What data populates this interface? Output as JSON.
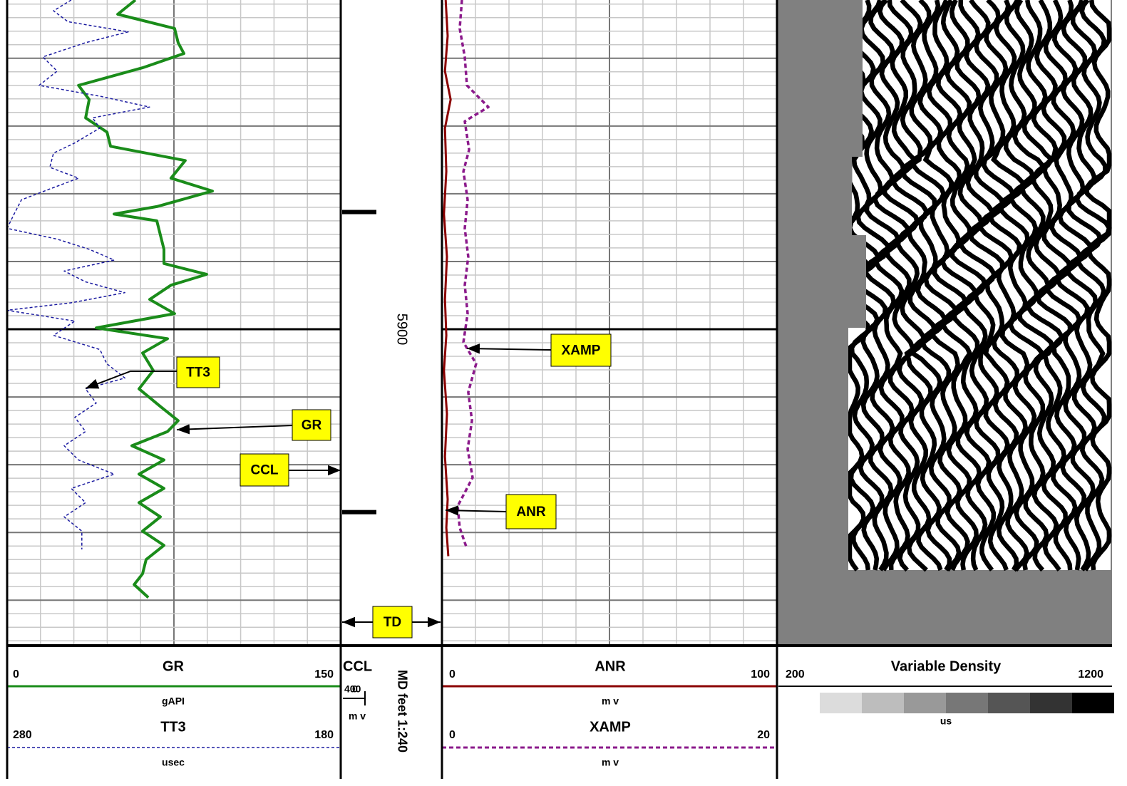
{
  "chart_data": {
    "type": "log",
    "ylim": [
      5851.4,
      5946.6
    ],
    "yticks": [
      5860,
      5870,
      5880,
      5890,
      5900,
      5910,
      5920,
      5930,
      5940
    ],
    "yminor": 2,
    "depth_label": 5900,
    "scale_label": "MD feet 1:240",
    "tracks": [
      {
        "xticks": [
          0,
          75,
          150
        ],
        "xlim": [
          0,
          150
        ],
        "xminor": 15,
        "series": [
          {
            "name": "GR",
            "unit": "gAPI",
            "xlim": [
              0,
              150
            ],
            "color": "#1a8c1a",
            "style": "solid",
            "depths": [
              5851.4,
              5853.5,
              5855.6,
              5857.7,
              5859.3,
              5861.4,
              5864.0,
              5866.1,
              5868.8,
              5870.9,
              5873.0,
              5875.1,
              5877.7,
              5879.6,
              5881.9,
              5883.0,
              5884.0,
              5886.1,
              5888.2,
              5890.3,
              5891.9,
              5893.5,
              5895.6,
              5897.7,
              5899.8,
              5901.4,
              5903.5,
              5906.1,
              5908.8,
              5911.4,
              5913.5,
              5915.1,
              5917.2,
              5919.3,
              5921.4,
              5923.5,
              5925.6,
              5927.7,
              5929.8,
              5931.9,
              5934.0,
              5936.1,
              5937.7,
              5939.6
            ],
            "values": [
              57.7,
              49.7,
              75.3,
              76.9,
              79.5,
              60.9,
              32.1,
              36.9,
              35.3,
              44.9,
              46.5,
              80.1,
              73.7,
              92.3,
              67.3,
              48.1,
              67.3,
              68.9,
              70.5,
              70.5,
              89.7,
              73.7,
              64.1,
              75.3,
              40.1,
              72.1,
              60.9,
              65.7,
              59.3,
              68.9,
              76.9,
              72.1,
              56.1,
              70.5,
              59.3,
              70.5,
              59.3,
              68.9,
              60.9,
              70.5,
              62.5,
              60.9,
              57.1,
              63.5
            ]
          },
          {
            "name": "TT3",
            "unit": "usec",
            "xlim": [
              280,
              180
            ],
            "color": "#1a1aa0",
            "style": "dashed",
            "depths": [
              5851.4,
              5853.0,
              5854.6,
              5856.1,
              5857.7,
              5859.8,
              5861.9,
              5864.0,
              5865.6,
              5867.2,
              5868.8,
              5870.3,
              5872.5,
              5874.0,
              5876.1,
              5877.7,
              5879.3,
              5880.9,
              5883.0,
              5885.1,
              5886.7,
              5888.2,
              5889.8,
              5891.4,
              5893.0,
              5894.6,
              5896.1,
              5897.2,
              5898.8,
              5900.9,
              5903.0,
              5905.1,
              5907.2,
              5908.8,
              5910.9,
              5913.0,
              5915.1,
              5917.2,
              5919.3,
              5921.4,
              5923.5,
              5925.6,
              5927.7,
              5929.8,
              5932.5
            ],
            "values": [
              260.8,
              266.1,
              261.8,
              243.7,
              256.5,
              269.3,
              265.0,
              270.4,
              252.2,
              237.3,
              254.4,
              252.2,
              259.7,
              266.1,
              267.2,
              258.6,
              267.2,
              275.7,
              277.9,
              280.0,
              265.0,
              255.4,
              247.9,
              262.9,
              256.5,
              244.7,
              260.8,
              280.0,
              259.7,
              266.1,
              252.2,
              250.1,
              244.7,
              256.5,
              253.3,
              259.7,
              256.5,
              262.9,
              258.6,
              247.9,
              260.8,
              256.5,
              262.9,
              257.6,
              257.6
            ]
          }
        ]
      },
      {
        "series": [
          {
            "name": "CCL",
            "unit": "m v",
            "xlim": [
              400,
              0
            ],
            "color": "#000000",
            "collars": [
              5882.7,
              5927.0
            ]
          }
        ]
      },
      {
        "xticks": [
          0,
          50,
          100
        ],
        "xlim": [
          0,
          100
        ],
        "xminor": 10,
        "series": [
          {
            "name": "ANR",
            "unit": "m v",
            "xlim": [
              0,
              100
            ],
            "color": "#8b0000",
            "style": "solid",
            "depths": [
              5851.4,
              5856.7,
              5861.9,
              5866.1,
              5870.3,
              5876.7,
              5883.0,
              5889.3,
              5895.6,
              5900.9,
              5906.1,
              5912.5,
              5918.8,
              5925.1,
              5929.3,
              5933.5
            ],
            "values": [
              1.1,
              1.7,
              0.9,
              2.6,
              0.9,
              1.3,
              0.6,
              1.5,
              0.9,
              1.3,
              0.6,
              1.5,
              0.9,
              1.7,
              1.3,
              1.9
            ]
          },
          {
            "name": "XAMP",
            "unit": "m v",
            "xlim": [
              0,
              20
            ],
            "color": "#8b1a8b",
            "style": "dotted",
            "depths": [
              5851.4,
              5855.6,
              5859.8,
              5864.0,
              5867.2,
              5869.3,
              5873.5,
              5876.7,
              5880.9,
              5885.1,
              5889.3,
              5893.5,
              5897.7,
              5901.9,
              5905.1,
              5909.3,
              5913.5,
              5917.7,
              5921.9,
              5926.1,
              5929.3,
              5932.4
            ],
            "values": [
              1.19,
              1.06,
              1.36,
              1.49,
              2.77,
              1.36,
              1.62,
              1.28,
              1.53,
              1.36,
              1.57,
              1.36,
              1.53,
              1.28,
              2.04,
              1.57,
              1.79,
              1.53,
              1.83,
              0.94,
              1.06,
              1.49
            ]
          }
        ]
      },
      {
        "title": "Variable Density",
        "unit": "us",
        "xlim": [
          200,
          1200
        ],
        "colors": [
          "#dcdcdc",
          "#bdbdbd",
          "#999999",
          "#777777",
          "#555555",
          "#333333",
          "#000000"
        ]
      }
    ],
    "annotations": [
      "TT3",
      "GR",
      "CCL",
      "XAMP",
      "ANR",
      "TD"
    ]
  }
}
